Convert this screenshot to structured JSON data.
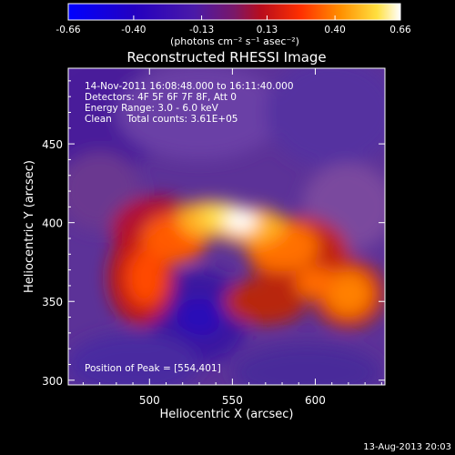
{
  "chart_data": {
    "type": "heatmap",
    "title": "Reconstructed RHESSI Image",
    "xlabel": "Heliocentric X (arcsec)",
    "ylabel": "Heliocentric Y (arcsec)",
    "xlim": [
      451,
      642
    ],
    "ylim": [
      297,
      498
    ],
    "x_ticks": [
      500,
      550,
      600
    ],
    "y_ticks": [
      300,
      350,
      400,
      450
    ],
    "colorbar": {
      "min": -0.66,
      "max": 0.66,
      "ticks": [
        -0.66,
        -0.4,
        -0.13,
        0.13,
        0.4,
        0.66
      ],
      "tick_labels": [
        "-0.66",
        "-0.40",
        "-0.13",
        "0.13",
        "0.40",
        "0.66"
      ],
      "unit_label": "(photons cm⁻² s⁻¹ asec⁻²)"
    },
    "annotations": [
      "14-Nov-2011 16:08:48.000 to 16:11:40.000",
      "Detectors: 4F 5F 6F 7F 8F, Att 0",
      "Energy Range: 3.0 - 6.0 keV",
      "Clean     Total counts: 3.61E+05"
    ],
    "peak_label": "Position of Peak = [554,401]",
    "peak": [
      554,
      401
    ],
    "timestamp": "13-Aug-2013 20:03"
  },
  "colors": {
    "background": "#000000",
    "text": "#ffffff",
    "colormap": [
      "#0000ff",
      "#3c00a8",
      "#5a2aa0",
      "#6a3a98",
      "#a0143c",
      "#d81010",
      "#ff5000",
      "#ffa000",
      "#ffe040",
      "#ffffff"
    ]
  }
}
